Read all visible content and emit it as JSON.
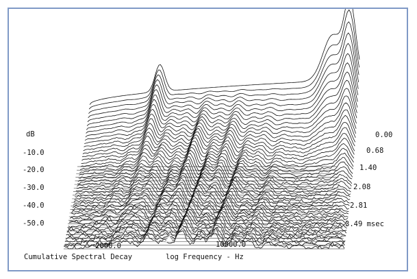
{
  "chart_data": {
    "type": "waterfall",
    "xlabel": "log Frequency - Hz",
    "x_scale": "log",
    "x_ticks": [
      {
        "label": "2000.0",
        "value": 2000
      },
      {
        "label": "10000.0",
        "value": 10000
      }
    ],
    "ylabel": "dB",
    "y_ticks": [
      {
        "label": "-10.0",
        "value": -10
      },
      {
        "label": "-20.0",
        "value": -20
      },
      {
        "label": "-30.0",
        "value": -30
      },
      {
        "label": "-40.0",
        "value": -40
      },
      {
        "label": "-50.0",
        "value": -50
      }
    ],
    "ylim": [
      -55,
      0
    ],
    "time_ticks": [
      {
        "label": "0.00",
        "value": 0.0
      },
      {
        "label": "0.68",
        "value": 0.68
      },
      {
        "label": "1.40",
        "value": 1.4
      },
      {
        "label": "2.08",
        "value": 2.08
      },
      {
        "label": "2.81",
        "value": 2.81
      },
      {
        "label": "3.49 msec",
        "value": 3.49
      }
    ],
    "time_range": [
      0,
      3.49
    ],
    "caption": "Cumulative Spectral Decay",
    "series_count": 50,
    "line_color": "#111111",
    "background": "#ffffff",
    "frame_color": "#7f99c6"
  }
}
